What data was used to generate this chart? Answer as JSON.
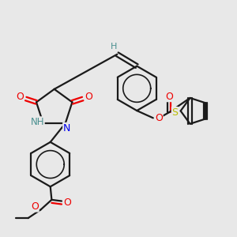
{
  "bg_color": "#e8e8e8",
  "bond_color": "#1a1a1a",
  "bond_width": 1.6,
  "colors": {
    "H": "#4a9090",
    "N": "#0000ee",
    "O": "#ee0000",
    "S": "#bbbb00",
    "C": "#1a1a1a"
  }
}
